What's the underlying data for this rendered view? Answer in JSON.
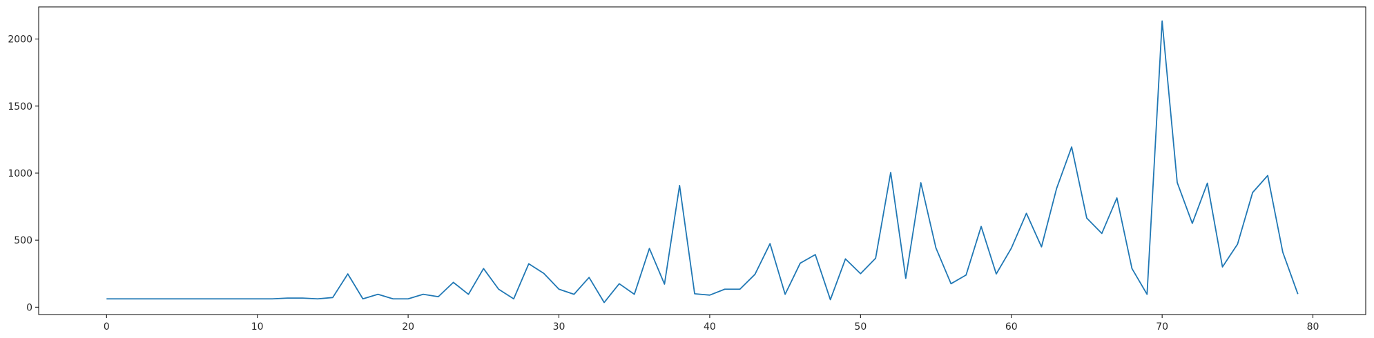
{
  "chart_data": {
    "type": "line",
    "title": "",
    "xlabel": "",
    "ylabel": "",
    "xlim": [
      -4.5,
      83.5
    ],
    "ylim": [
      -55,
      2240
    ],
    "xticks": [
      0,
      10,
      20,
      30,
      40,
      50,
      60,
      70,
      80
    ],
    "yticks": [
      0,
      500,
      1000,
      1500,
      2000
    ],
    "grid": false,
    "legend": "none",
    "series_color": "#1f77b4",
    "x": [
      0,
      1,
      2,
      3,
      4,
      5,
      6,
      7,
      8,
      9,
      10,
      11,
      12,
      13,
      14,
      15,
      16,
      17,
      18,
      19,
      20,
      21,
      22,
      23,
      24,
      25,
      26,
      27,
      28,
      29,
      30,
      31,
      32,
      33,
      34,
      35,
      36,
      37,
      38,
      39,
      40,
      41,
      42,
      43,
      44,
      45,
      46,
      47,
      48,
      49,
      50,
      51,
      52,
      53,
      54,
      55,
      56,
      57,
      58,
      59,
      60,
      61,
      62,
      63,
      64,
      65,
      66,
      67,
      68,
      69,
      70,
      71,
      72,
      73,
      74,
      75,
      76,
      77,
      78,
      79
    ],
    "y": [
      62,
      62,
      62,
      62,
      62,
      62,
      62,
      62,
      62,
      62,
      62,
      62,
      68,
      68,
      62,
      72,
      248,
      62,
      96,
      62,
      62,
      96,
      78,
      185,
      96,
      288,
      134,
      62,
      324,
      252,
      134,
      96,
      222,
      35,
      175,
      96,
      438,
      172,
      908,
      100,
      90,
      134,
      134,
      245,
      474,
      96,
      328,
      392,
      56,
      360,
      250,
      365,
      1005,
      215,
      928,
      442,
      175,
      240,
      602,
      248,
      440,
      700,
      450,
      885,
      1195,
      665,
      550,
      815,
      288,
      96,
      2135,
      930,
      625,
      925,
      300,
      470,
      855,
      982,
      410,
      98
    ]
  }
}
